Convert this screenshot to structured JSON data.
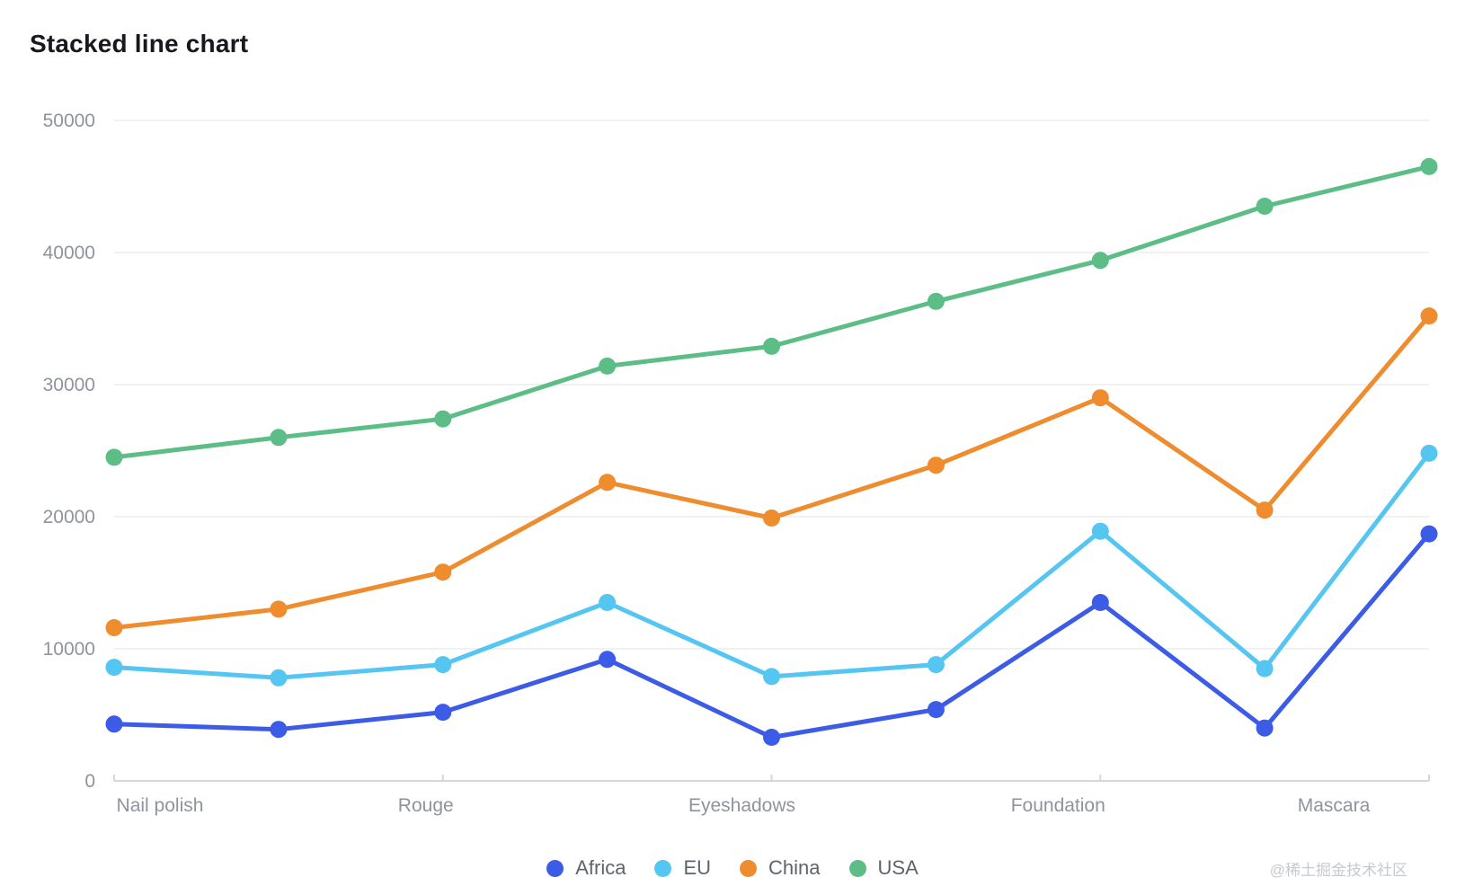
{
  "title": "Stacked line chart",
  "watermark": "@稀土掘金技术社区",
  "chart_data": {
    "type": "line",
    "title": "Stacked line chart",
    "categories": [
      "Nail polish",
      "",
      "Rouge",
      "",
      "Eyeshadows",
      "",
      "Foundation",
      "",
      "Mascara"
    ],
    "x_axis_labels_visible": [
      "Nail polish",
      "Rouge",
      "Eyeshadows",
      "Foundation",
      "Mascara"
    ],
    "series": [
      {
        "name": "Africa",
        "color": "#3c5be6",
        "values": [
          4300,
          3900,
          5200,
          9200,
          3300,
          5400,
          13500,
          4000,
          18700
        ]
      },
      {
        "name": "EU",
        "color": "#55c5f2",
        "values": [
          8600,
          7800,
          8800,
          13500,
          7900,
          8800,
          18900,
          8500,
          24800
        ]
      },
      {
        "name": "China",
        "color": "#ee8c2e",
        "values": [
          11600,
          13000,
          15800,
          22600,
          19900,
          23900,
          29000,
          20500,
          35200
        ]
      },
      {
        "name": "USA",
        "color": "#5cbd86",
        "values": [
          24500,
          26000,
          27400,
          31400,
          32900,
          36300,
          39400,
          43500,
          46500
        ]
      }
    ],
    "ylim": [
      0,
      50000
    ],
    "y_ticks": [
      0,
      10000,
      20000,
      30000,
      40000,
      50000
    ],
    "grid": true,
    "legend_position": "bottom",
    "legend_entries": [
      "Africa",
      "EU",
      "China",
      "USA"
    ]
  },
  "style_colors": {
    "grid_line": "#f0f1f3",
    "axis_line": "#d4d7de",
    "tick_label": "#8f939e"
  }
}
